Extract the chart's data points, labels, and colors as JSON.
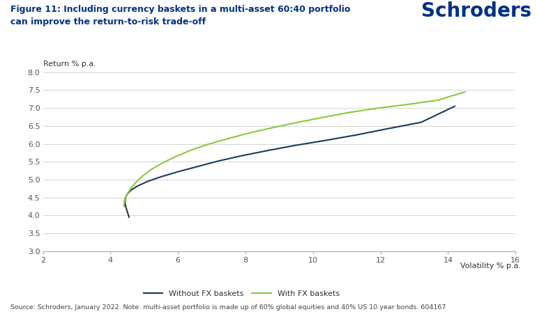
{
  "title_line1": "Figure 11: Including currency baskets in a multi-asset 60:40 portfolio",
  "title_line2": "can improve the return-to-risk trade-off",
  "logo_text": "Schroders",
  "ylabel": "Return % p.a.",
  "xlabel": "Volatility % p.a.",
  "source_text": "Source: Schroders, January 2022. Note: multi-asset portfolio is made up of 60% global equities and 40% US 10 year bonds. 604167",
  "xlim": [
    2,
    16
  ],
  "ylim": [
    3.0,
    8.0
  ],
  "xticks": [
    2,
    4,
    6,
    8,
    10,
    12,
    14,
    16
  ],
  "yticks": [
    3.0,
    3.5,
    4.0,
    4.5,
    5.0,
    5.5,
    6.0,
    6.5,
    7.0,
    7.5,
    8.0
  ],
  "without_fx_x": [
    4.55,
    4.5,
    4.45,
    4.43,
    4.44,
    4.5,
    4.6,
    4.8,
    5.1,
    5.5,
    6.0,
    6.6,
    7.2,
    7.9,
    8.7,
    9.5,
    10.4,
    11.3,
    12.2,
    13.2,
    14.2
  ],
  "without_fx_y": [
    3.95,
    4.1,
    4.25,
    4.38,
    4.48,
    4.6,
    4.7,
    4.82,
    4.95,
    5.08,
    5.22,
    5.37,
    5.52,
    5.67,
    5.82,
    5.96,
    6.1,
    6.25,
    6.42,
    6.6,
    7.05
  ],
  "with_fx_x": [
    4.4,
    4.42,
    4.5,
    4.6,
    4.75,
    4.95,
    5.2,
    5.55,
    5.95,
    6.4,
    6.9,
    7.5,
    8.1,
    8.8,
    9.55,
    10.3,
    11.1,
    11.95,
    12.8,
    13.7,
    14.5
  ],
  "with_fx_y": [
    4.25,
    4.45,
    4.6,
    4.75,
    4.92,
    5.1,
    5.28,
    5.47,
    5.65,
    5.83,
    5.99,
    6.15,
    6.3,
    6.45,
    6.6,
    6.74,
    6.88,
    7.0,
    7.1,
    7.22,
    7.45
  ],
  "color_without_fx": "#1a3a5c",
  "color_with_fx": "#8dc63f",
  "legend_label_without": "Without FX baskets",
  "legend_label_with": "With FX baskets",
  "background_color": "#ffffff",
  "title_color": "#003087",
  "logo_color": "#003087",
  "grid_color": "#cccccc",
  "source_color": "#444444",
  "tick_color": "#555555"
}
